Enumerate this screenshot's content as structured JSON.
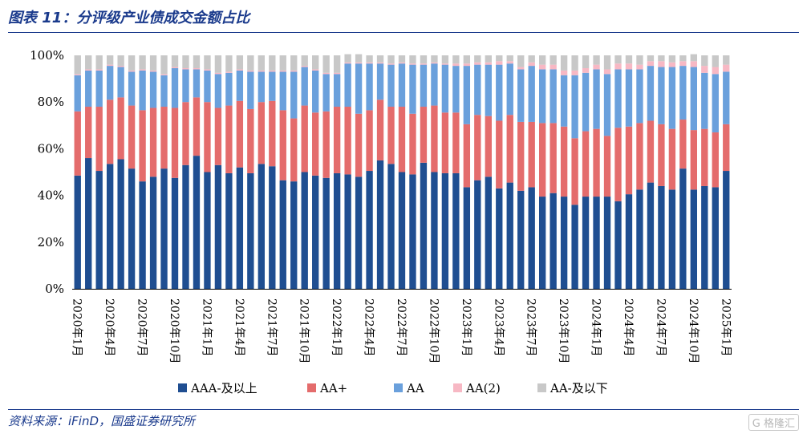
{
  "header": {
    "title": "图表 11：分评级产业债成交金额占比"
  },
  "footer": {
    "source": "资料来源：iFinD，国盛证券研究所",
    "watermark": "G 格隆汇"
  },
  "chart_data": {
    "type": "bar",
    "stacked": true,
    "ylim": [
      0,
      100
    ],
    "yticks": [
      "0%",
      "20%",
      "40%",
      "60%",
      "80%",
      "100%"
    ],
    "x_tick_labels": [
      "2020年1月",
      "2020年4月",
      "2020年7月",
      "2020年10月",
      "2021年1月",
      "2021年4月",
      "2021年7月",
      "2021年10月",
      "2022年1月",
      "2022年4月",
      "2022年7月",
      "2022年10月",
      "2023年1月",
      "2023年4月",
      "2023年7月",
      "2023年10月",
      "2024年1月",
      "2024年4月",
      "2024年7月",
      "2024年10月",
      "2025年1月"
    ],
    "legend_position": "bottom",
    "series": [
      {
        "name": "AAA-及以上",
        "color": "#1f4e91",
        "values": [
          48.5,
          56,
          50.5,
          53.5,
          55.5,
          51.5,
          46,
          48,
          51.5,
          47.5,
          53,
          57,
          50,
          53,
          49.5,
          52,
          49.5,
          53.5,
          52.5,
          46.5,
          46,
          50,
          48.5,
          47.5,
          49.5,
          49,
          48,
          50.5,
          55,
          53.5,
          50,
          49,
          54,
          50,
          49.5,
          49.5,
          43.5,
          46.5,
          48,
          43,
          45.5,
          42,
          43.5,
          39.5,
          41,
          39.5,
          36,
          39.5,
          39.5,
          39.5,
          37.5,
          40.5,
          42.5,
          45.5,
          44,
          42.5,
          51.5,
          42.5,
          44,
          43.5,
          50.5
        ]
      },
      {
        "name": "AA+",
        "color": "#e46c6c",
        "values": [
          27.5,
          22,
          27.5,
          27.5,
          26.5,
          27,
          30.5,
          29.5,
          26.5,
          30,
          27,
          25,
          30,
          24.5,
          29,
          28.5,
          27.5,
          26.5,
          28,
          30,
          27,
          28.5,
          27,
          28.5,
          28.5,
          29,
          27,
          26,
          26,
          24.5,
          28,
          26,
          24,
          28.5,
          26,
          26,
          27,
          28,
          26,
          29,
          29,
          29.5,
          28,
          31.5,
          30,
          30,
          28.5,
          28,
          29,
          26,
          31.5,
          29,
          28.5,
          26.5,
          26.5,
          26,
          21,
          25.5,
          24.5,
          23.5,
          20
        ]
      },
      {
        "name": "AA",
        "color": "#6aa0dc",
        "values": [
          15.5,
          15.5,
          15.5,
          14.5,
          13,
          14.5,
          17,
          15.5,
          13.5,
          17,
          14,
          12,
          13.5,
          14.5,
          14,
          13,
          16,
          13,
          12.5,
          16.5,
          20,
          16.5,
          18,
          16,
          14,
          18.5,
          21.5,
          20,
          15.5,
          18,
          18.5,
          21,
          18,
          18,
          20.5,
          20,
          25,
          21.5,
          22,
          24,
          22,
          22.5,
          24,
          23,
          23,
          22,
          27,
          25,
          25.5,
          26.5,
          25,
          24.5,
          23,
          23.5,
          24.5,
          26.5,
          23,
          27,
          24,
          25,
          22.5
        ]
      },
      {
        "name": "AA(2)",
        "color": "#f7b8c4",
        "values": [
          0.5,
          0.5,
          0.5,
          0.5,
          0.5,
          0.5,
          0.5,
          0.5,
          0.5,
          0.5,
          0.5,
          0.5,
          0.5,
          0.5,
          0.5,
          0.5,
          0.5,
          0.5,
          0.5,
          0.5,
          0.5,
          0.5,
          0.5,
          0.5,
          0.5,
          0.5,
          0.5,
          0.5,
          0.5,
          0.5,
          0.5,
          0.5,
          0.5,
          0.5,
          0.5,
          1,
          1,
          1,
          1,
          1.5,
          1,
          1,
          1.5,
          2,
          2,
          2,
          2,
          2,
          2,
          2,
          2.5,
          2.5,
          2,
          2,
          2.5,
          2,
          2,
          2.5,
          3,
          3,
          3
        ]
      },
      {
        "name": "AA-及以下",
        "color": "#c8c8c8",
        "values": [
          8,
          6,
          6,
          4,
          4.5,
          6.5,
          6,
          6.5,
          8,
          5,
          5.5,
          5.5,
          6,
          7.5,
          7,
          6,
          6.5,
          6.5,
          6.5,
          6.5,
          6.5,
          4.5,
          6,
          7.5,
          7.5,
          3.5,
          3.5,
          3,
          3,
          3.5,
          3,
          3.5,
          3.5,
          3,
          3.5,
          3.5,
          3.5,
          3,
          3,
          2.5,
          2.5,
          5,
          3,
          4,
          4,
          6.5,
          6.5,
          5.5,
          4,
          6,
          3.5,
          3.5,
          4,
          2.5,
          2.5,
          3,
          2.5,
          3,
          4.5,
          5,
          4
        ]
      }
    ]
  }
}
